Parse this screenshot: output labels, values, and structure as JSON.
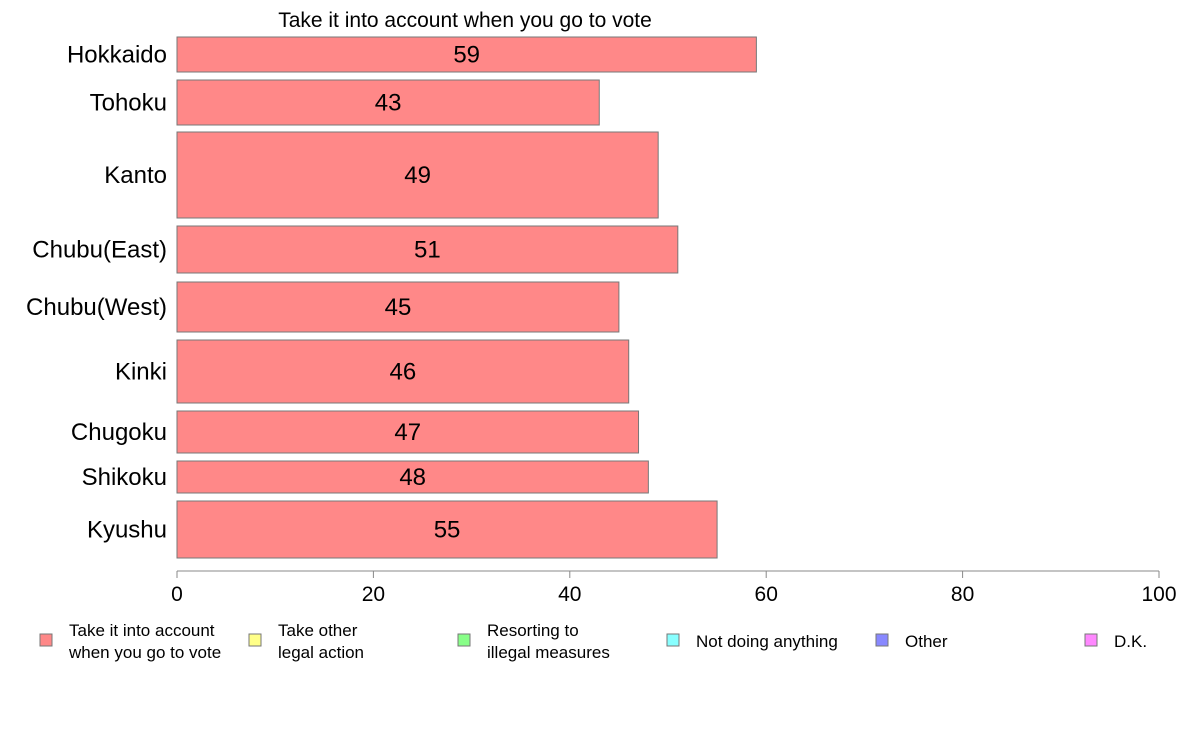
{
  "chart_data": {
    "type": "bar",
    "orientation": "horizontal",
    "title": "Take it into account when you go to vote",
    "xlabel": "",
    "ylabel": "",
    "xlim": [
      0,
      100
    ],
    "x_ticks": [
      "0",
      "20",
      "40",
      "60",
      "80",
      "100"
    ],
    "grid": false,
    "categories": [
      "Hokkaido",
      "Tohoku",
      "Kanto",
      "Chubu(East)",
      "Chubu(West)",
      "Kinki",
      "Chugoku",
      "Shikoku",
      "Kyushu"
    ],
    "values": [
      59,
      43,
      49,
      51,
      45,
      46,
      47,
      48,
      55
    ],
    "data_labels": [
      "59",
      "43",
      "49",
      "51",
      "45",
      "46",
      "47",
      "48",
      "55"
    ],
    "bar_color": "#ff8888",
    "bar_edge_color": "#777777",
    "legend_position": "bottom",
    "legend": [
      {
        "label": "Take it into account\nwhen you go to vote",
        "color": "#ff8888"
      },
      {
        "label": "Take other\nlegal action",
        "color": "#ffff88"
      },
      {
        "label": "Resorting to\nillegal measures",
        "color": "#88ff88"
      },
      {
        "label": "Not doing anything",
        "color": "#88ffff"
      },
      {
        "label": "Other",
        "color": "#8888ff"
      },
      {
        "label": "D.K.",
        "color": "#ff88ff"
      }
    ]
  }
}
